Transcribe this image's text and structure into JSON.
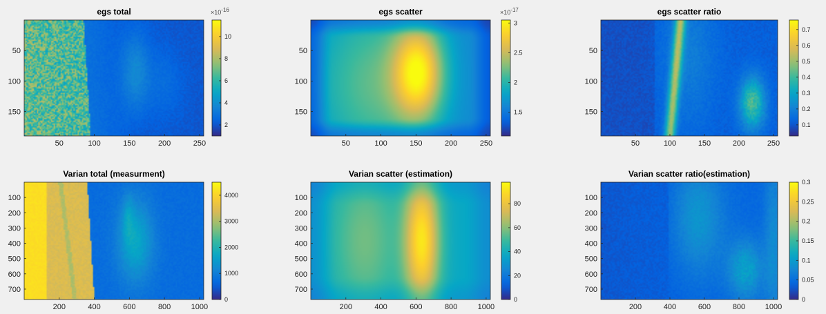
{
  "figure": {
    "background": "#f0f0f0",
    "colormap": "parula",
    "colormap_stops": [
      "#352a87",
      "#0363e1",
      "#1485d4",
      "#06a7c6",
      "#38b99e",
      "#92bf73",
      "#d9ba56",
      "#fcce2e",
      "#f9fb0e"
    ]
  },
  "chart_data": [
    {
      "id": "egs-total",
      "type": "heatmap",
      "title": "egs total",
      "xlim": [
        0,
        256
      ],
      "ylim": [
        0,
        190
      ],
      "xticks": [
        50,
        100,
        150,
        200,
        250
      ],
      "yticks": [
        50,
        100,
        150
      ],
      "colorbar": {
        "min": 1,
        "max": 11.5,
        "ticks": [
          2,
          4,
          6,
          8,
          10
        ],
        "ticklabels": [
          "2",
          "4",
          "6",
          "8",
          "10"
        ],
        "exponent": "×10",
        "exponent_power": "-16"
      },
      "pattern": "total_sim"
    },
    {
      "id": "egs-scatter",
      "type": "heatmap",
      "title": "egs scatter",
      "xlim": [
        0,
        256
      ],
      "ylim": [
        0,
        190
      ],
      "xticks": [
        50,
        100,
        150,
        200,
        250
      ],
      "yticks": [
        50,
        100,
        150
      ],
      "colorbar": {
        "min": 1.1,
        "max": 3.05,
        "ticks": [
          1.5,
          2,
          2.5,
          3
        ],
        "ticklabels": [
          "1.5",
          "2",
          "2.5",
          "3"
        ],
        "exponent": "×10",
        "exponent_power": "-17"
      },
      "pattern": "scatter"
    },
    {
      "id": "egs-scatter-ratio",
      "type": "heatmap",
      "title": "egs scatter ratio",
      "xlim": [
        0,
        256
      ],
      "ylim": [
        0,
        190
      ],
      "xticks": [
        50,
        100,
        150,
        200,
        250
      ],
      "yticks": [
        50,
        100,
        150
      ],
      "colorbar": {
        "min": 0.03,
        "max": 0.76,
        "ticks": [
          0.1,
          0.2,
          0.3,
          0.4,
          0.5,
          0.6,
          0.7
        ],
        "ticklabels": [
          "0.1",
          "0.2",
          "0.3",
          "0.4",
          "0.5",
          "0.6",
          "0.7"
        ],
        "exponent": "",
        "exponent_power": ""
      },
      "pattern": "ratio_sim"
    },
    {
      "id": "varian-total",
      "type": "heatmap",
      "title": "Varian total (measurment)",
      "xlim": [
        0,
        1024
      ],
      "ylim": [
        0,
        768
      ],
      "xticks": [
        200,
        400,
        600,
        800,
        1000
      ],
      "yticks": [
        100,
        200,
        300,
        400,
        500,
        600,
        700
      ],
      "colorbar": {
        "min": 0,
        "max": 4500,
        "ticks": [
          0,
          1000,
          2000,
          3000,
          4000
        ],
        "ticklabels": [
          "0",
          "1000",
          "2000",
          "3000",
          "4000"
        ],
        "exponent": "",
        "exponent_power": ""
      },
      "pattern": "total_meas"
    },
    {
      "id": "varian-scatter",
      "type": "heatmap",
      "title": "Varian scatter (estimation)",
      "xlim": [
        0,
        1024
      ],
      "ylim": [
        0,
        768
      ],
      "xticks": [
        200,
        400,
        600,
        800,
        1000
      ],
      "yticks": [
        100,
        200,
        300,
        400,
        500,
        600,
        700
      ],
      "colorbar": {
        "min": 0,
        "max": 98,
        "ticks": [
          0,
          20,
          40,
          60,
          80
        ],
        "ticklabels": [
          "0",
          "20",
          "40",
          "60",
          "80"
        ],
        "exponent": "",
        "exponent_power": ""
      },
      "pattern": "scatter_meas"
    },
    {
      "id": "varian-scatter-ratio",
      "type": "heatmap",
      "title": "Varian scatter ratio(estimation)",
      "xlim": [
        0,
        1024
      ],
      "ylim": [
        0,
        768
      ],
      "xticks": [
        200,
        400,
        600,
        800,
        1000
      ],
      "yticks": [
        100,
        200,
        300,
        400,
        500,
        600,
        700
      ],
      "colorbar": {
        "min": 0,
        "max": 0.3,
        "ticks": [
          0,
          0.05,
          0.1,
          0.15,
          0.2,
          0.25,
          0.3
        ],
        "ticklabels": [
          "0",
          "0.05",
          "0.1",
          "0.15",
          "0.2",
          "0.25",
          "0.3"
        ],
        "exponent": "",
        "exponent_power": ""
      },
      "pattern": "ratio_meas"
    }
  ]
}
